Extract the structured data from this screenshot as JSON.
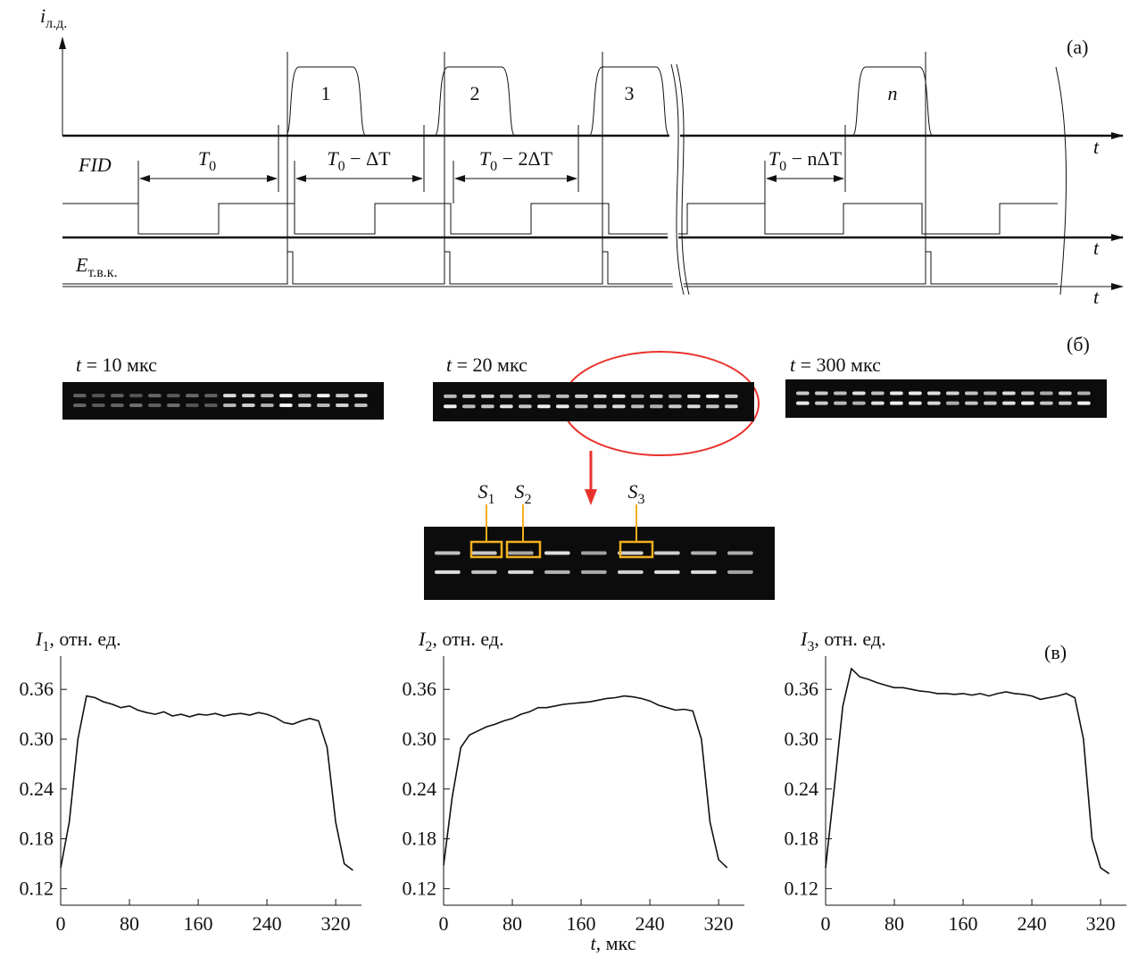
{
  "diagram": {
    "y_label": {
      "symbol": "i",
      "subscript": "л.д."
    },
    "time_axis": "t",
    "panel_label": "(а)",
    "pulse_labels": [
      "1",
      "2",
      "3",
      "n"
    ],
    "fid_label": "FID",
    "e_label": {
      "symbol": "E",
      "subscript": "т.в.к."
    },
    "intervals": [
      {
        "symbol": "T",
        "subscript": "0"
      },
      {
        "symbol": "T",
        "subscript": "0",
        "rest": " − ΔT"
      },
      {
        "symbol": "T",
        "subscript": "0",
        "rest": " − 2ΔT"
      },
      {
        "symbol": "T",
        "subscript": "0",
        "rest": " − nΔT"
      }
    ]
  },
  "images": {
    "panel_label": "(б)",
    "frames": [
      {
        "symbol": "t",
        "rest": " = 10 мкс"
      },
      {
        "symbol": "t",
        "rest": " = 20 мкс"
      },
      {
        "symbol": "t",
        "rest": " = 300 мкс"
      }
    ],
    "regions": [
      {
        "symbol": "S",
        "subscript": "1"
      },
      {
        "symbol": "S",
        "subscript": "2"
      },
      {
        "symbol": "S",
        "subscript": "3"
      }
    ]
  },
  "chart_data": [
    {
      "type": "line",
      "ylabel": {
        "symbol": "I",
        "subscript": "1",
        "rest": ", отн. ед."
      },
      "color": "#111111",
      "x": [
        0,
        10,
        20,
        30,
        40,
        50,
        60,
        70,
        80,
        90,
        100,
        110,
        120,
        130,
        140,
        150,
        160,
        170,
        180,
        190,
        200,
        210,
        220,
        230,
        240,
        250,
        260,
        270,
        280,
        290,
        300,
        310,
        320,
        330,
        340
      ],
      "values": [
        0.145,
        0.2,
        0.3,
        0.352,
        0.35,
        0.345,
        0.342,
        0.338,
        0.34,
        0.335,
        0.332,
        0.33,
        0.333,
        0.328,
        0.33,
        0.327,
        0.33,
        0.329,
        0.331,
        0.328,
        0.33,
        0.331,
        0.329,
        0.332,
        0.33,
        0.326,
        0.32,
        0.318,
        0.322,
        0.325,
        0.322,
        0.29,
        0.2,
        0.15,
        0.142
      ],
      "xlim": [
        0,
        350
      ],
      "ylim": [
        0.1,
        0.4
      ],
      "xticks": [
        0,
        80,
        160,
        240,
        320
      ],
      "yticks": [
        0.12,
        0.18,
        0.24,
        {
          "value": 0.3,
          "label": "0.30"
        },
        0.36
      ]
    },
    {
      "type": "line",
      "ylabel": {
        "symbol": "I",
        "subscript": "2",
        "rest": ", отн. ед."
      },
      "xlabel": {
        "symbol": "t",
        "rest": ", мкс"
      },
      "color": "#111111",
      "x": [
        0,
        10,
        20,
        30,
        40,
        50,
        60,
        70,
        80,
        90,
        100,
        110,
        120,
        130,
        140,
        150,
        160,
        170,
        180,
        190,
        200,
        210,
        220,
        230,
        240,
        250,
        260,
        270,
        280,
        290,
        300,
        310,
        320,
        330
      ],
      "values": [
        0.148,
        0.23,
        0.29,
        0.305,
        0.31,
        0.315,
        0.318,
        0.322,
        0.325,
        0.33,
        0.333,
        0.338,
        0.338,
        0.34,
        0.342,
        0.343,
        0.344,
        0.345,
        0.347,
        0.349,
        0.35,
        0.352,
        0.351,
        0.349,
        0.346,
        0.341,
        0.338,
        0.335,
        0.336,
        0.334,
        0.3,
        0.2,
        0.155,
        0.145
      ],
      "xlim": [
        0,
        350
      ],
      "ylim": [
        0.1,
        0.4
      ],
      "xticks": [
        0,
        80,
        160,
        240,
        320
      ],
      "yticks": [
        0.12,
        0.18,
        0.24,
        {
          "value": 0.3,
          "label": "0.30"
        },
        0.36
      ]
    },
    {
      "type": "line",
      "ylabel": {
        "symbol": "I",
        "subscript": "3",
        "rest": ", отн. ед."
      },
      "panel_label": "(в)",
      "color": "#111111",
      "x": [
        0,
        10,
        20,
        30,
        40,
        50,
        60,
        70,
        80,
        90,
        100,
        110,
        120,
        130,
        140,
        150,
        160,
        170,
        180,
        190,
        200,
        210,
        220,
        230,
        240,
        250,
        260,
        270,
        280,
        290,
        300,
        310,
        320,
        330
      ],
      "values": [
        0.145,
        0.24,
        0.34,
        0.385,
        0.375,
        0.372,
        0.368,
        0.365,
        0.362,
        0.362,
        0.36,
        0.358,
        0.357,
        0.355,
        0.355,
        0.354,
        0.355,
        0.353,
        0.355,
        0.352,
        0.355,
        0.357,
        0.355,
        0.354,
        0.352,
        0.348,
        0.35,
        0.352,
        0.355,
        0.35,
        0.3,
        0.18,
        0.145,
        0.138
      ],
      "xlim": [
        0,
        350
      ],
      "ylim": [
        0.1,
        0.4
      ],
      "xticks": [
        0,
        80,
        160,
        240,
        320
      ],
      "yticks": [
        0.12,
        0.18,
        0.24,
        {
          "value": 0.3,
          "label": "0.30"
        },
        0.36
      ]
    }
  ]
}
